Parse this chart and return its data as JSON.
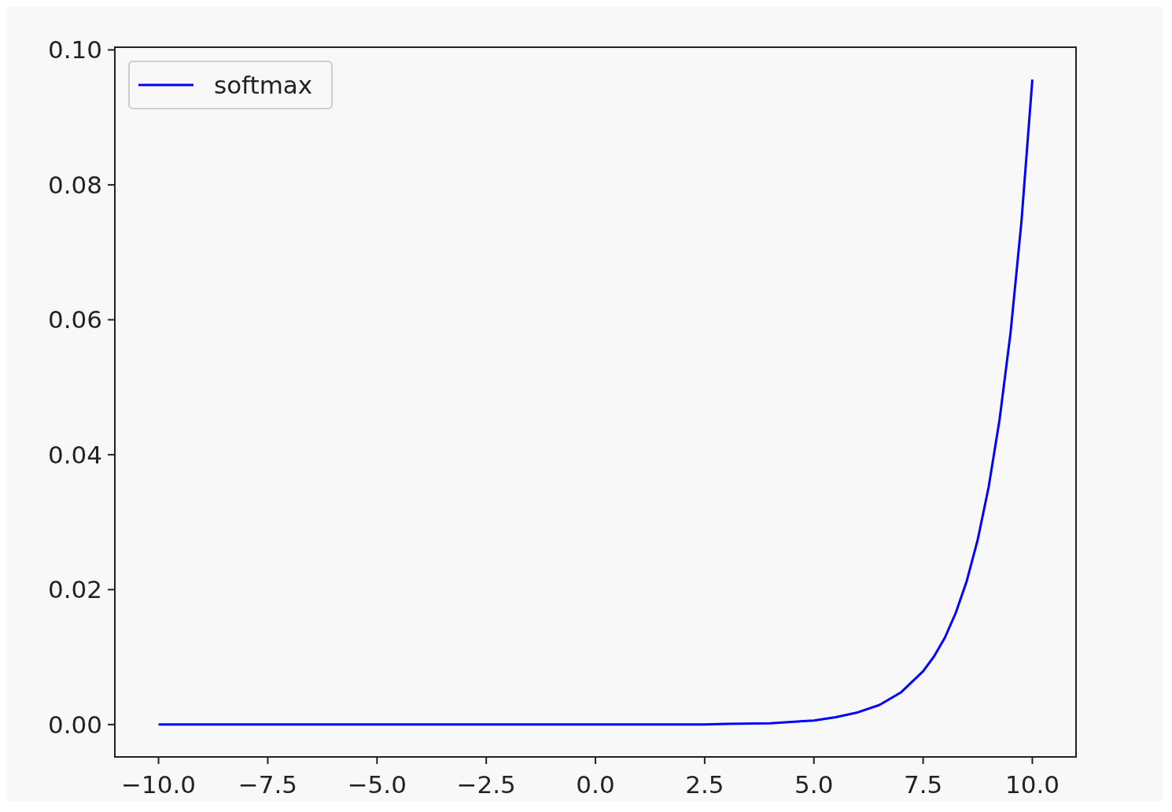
{
  "chart_data": {
    "type": "line",
    "x": [
      -10,
      -7.5,
      -5,
      -2.5,
      0,
      2.5,
      3,
      4,
      5,
      5.5,
      6,
      6.5,
      7,
      7.5,
      7.75,
      8,
      8.25,
      8.5,
      8.75,
      9,
      9.25,
      9.5,
      9.75,
      10
    ],
    "series": [
      {
        "name": "softmax",
        "color": "#0000ff",
        "values": [
          0,
          0,
          0,
          0,
          0,
          0,
          0.0001,
          0.0002,
          0.0006,
          0.0011,
          0.0018,
          0.0029,
          0.0048,
          0.0079,
          0.0101,
          0.0129,
          0.0166,
          0.0213,
          0.0274,
          0.0352,
          0.0452,
          0.058,
          0.0745,
          0.0956
        ]
      }
    ],
    "xlim": [
      -11,
      11
    ],
    "ylim": [
      -0.0048,
      0.1004
    ],
    "xticks": [
      {
        "value": -10,
        "label": "−10.0"
      },
      {
        "value": -7.5,
        "label": "−7.5"
      },
      {
        "value": -5,
        "label": "−5.0"
      },
      {
        "value": -2.5,
        "label": "−2.5"
      },
      {
        "value": 0,
        "label": "0.0"
      },
      {
        "value": 2.5,
        "label": "2.5"
      },
      {
        "value": 5,
        "label": "5.0"
      },
      {
        "value": 7.5,
        "label": "7.5"
      },
      {
        "value": 10,
        "label": "10.0"
      }
    ],
    "yticks": [
      {
        "value": 0,
        "label": "0.00"
      },
      {
        "value": 0.02,
        "label": "0.02"
      },
      {
        "value": 0.04,
        "label": "0.04"
      },
      {
        "value": 0.06,
        "label": "0.06"
      },
      {
        "value": 0.08,
        "label": "0.08"
      },
      {
        "value": 0.1,
        "label": "0.10"
      }
    ],
    "legend": "top left",
    "grid": false,
    "line_style": "solid",
    "marker": "none"
  }
}
